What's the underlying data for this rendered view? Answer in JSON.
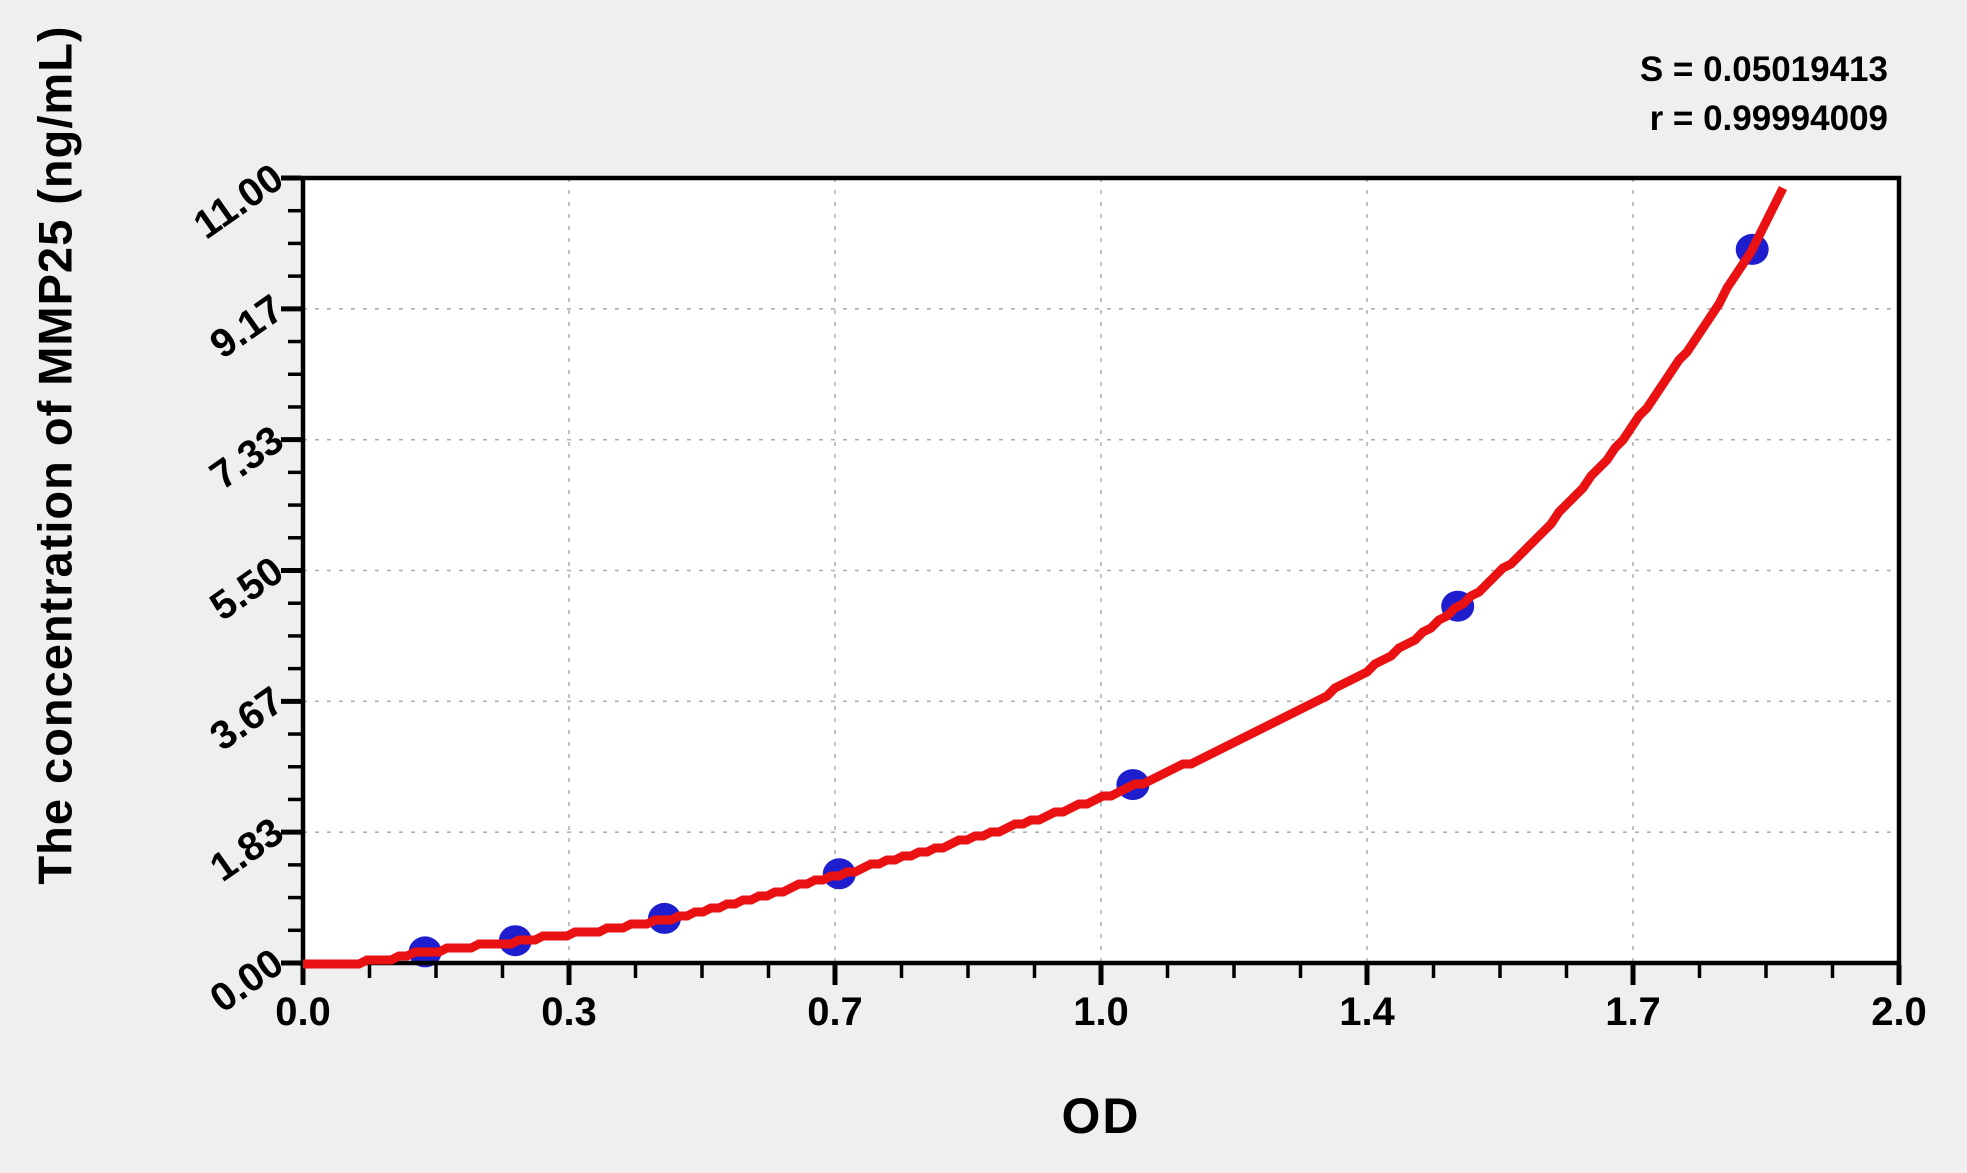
{
  "annotation": {
    "s_line": "S = 0.05019413",
    "r_line": "r = 0.99994009"
  },
  "chart_data": {
    "type": "scatter",
    "title": "",
    "xlabel": "OD",
    "ylabel": "The concentration of MMP25 (ng/mL)",
    "xlim": [
      0.0,
      2.0
    ],
    "ylim": [
      0.0,
      11.0
    ],
    "x_tick_labels": [
      "0.0",
      "0.3",
      "0.7",
      "1.0",
      "1.4",
      "1.7",
      "2.0"
    ],
    "y_tick_labels": [
      "0.00",
      "1.83",
      "3.67",
      "5.50",
      "7.33",
      "9.17",
      "11.00"
    ],
    "minor_ticks_per_major_interval": 3,
    "grid": "dashed gray at major ticks",
    "legend_position": "none",
    "stats": {
      "S": 0.05019413,
      "r": 0.99994009
    },
    "series": [
      {
        "name": "standard-points",
        "type": "scatter",
        "marker": "filled-circle",
        "color": "#1e1ecf",
        "od": [
          0.153,
          0.266,
          0.453,
          0.672,
          1.04,
          1.447,
          1.816
        ],
        "concentration": [
          0.156,
          0.312,
          0.625,
          1.25,
          2.5,
          5.0,
          10.0
        ]
      },
      {
        "name": "fitted-curve",
        "type": "line",
        "color": "#e91111",
        "points": [
          [
            0.0,
            0.0
          ],
          [
            0.07,
            0.01
          ],
          [
            0.153,
            0.15
          ],
          [
            0.266,
            0.3
          ],
          [
            0.453,
            0.61
          ],
          [
            0.672,
            1.24
          ],
          [
            1.04,
            2.48
          ],
          [
            1.447,
            4.98
          ],
          [
            1.816,
            10.0
          ],
          [
            1.863,
            11.08
          ]
        ]
      }
    ],
    "colors": {
      "background": "#efefef",
      "plot_background": "#ffffff",
      "frame": "#000000",
      "grid": "#b0b0b0",
      "point": "#1e1ecf",
      "curve": "#e91111",
      "text": "#000000"
    }
  }
}
